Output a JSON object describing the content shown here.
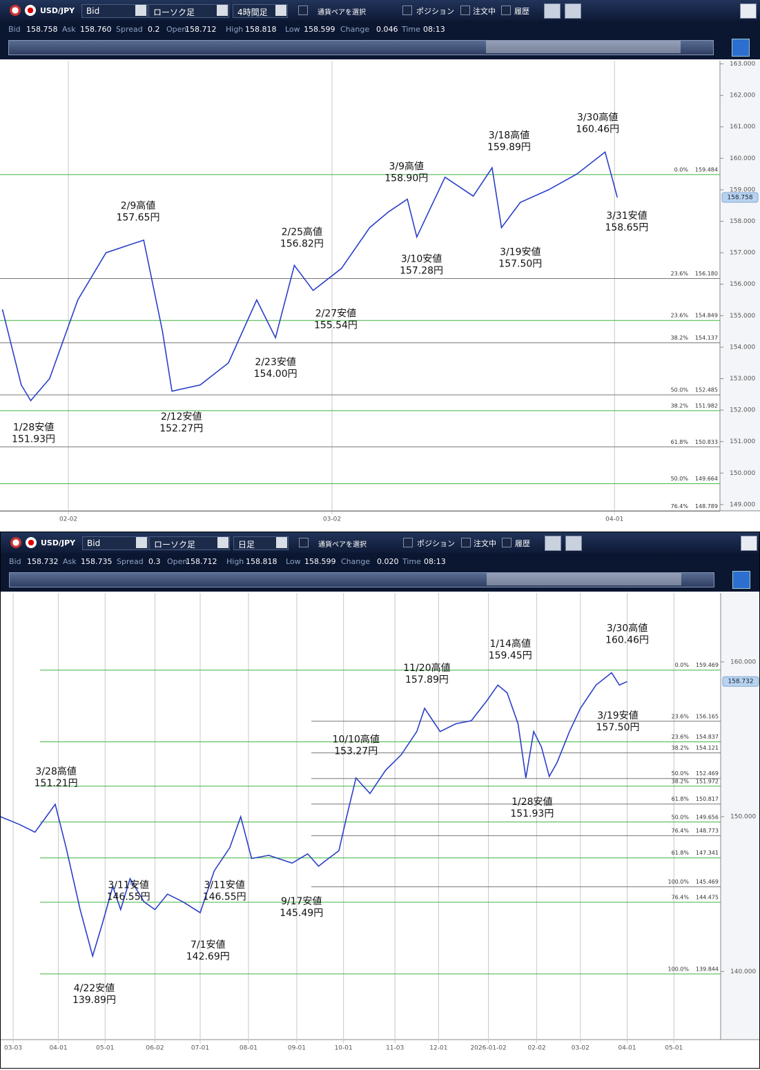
{
  "panels": [
    {
      "toolbar": {
        "pair": "USD/JPY",
        "price_type": "Bid",
        "chart_type": "ローソク足",
        "timeframe": "4時間足",
        "select_pair": "通貨ペアを選択",
        "checks": [
          "ポジション",
          "注文中",
          "履歴"
        ]
      },
      "quote": [
        {
          "label": "Bid",
          "value": "158.758"
        },
        {
          "label": "Ask",
          "value": "158.760"
        },
        {
          "label": "Spread",
          "value": "0.2"
        },
        {
          "label": "Open",
          "value": "158.712"
        },
        {
          "label": "High",
          "value": "158.818"
        },
        {
          "label": "Low",
          "value": "158.599"
        },
        {
          "label": "Change",
          "value": "0.046"
        },
        {
          "label": "Time",
          "value": "08:13"
        }
      ],
      "chart": {
        "type": "line",
        "ylim": [
          148.8,
          163.1
        ],
        "yticks": [
          {
            "value": 149,
            "label": "149.000"
          },
          {
            "value": 150,
            "label": "150.000"
          },
          {
            "value": 151,
            "label": "151.000"
          },
          {
            "value": 152,
            "label": "152.000"
          },
          {
            "value": 153,
            "label": "153.000"
          },
          {
            "value": 154,
            "label": "154.000"
          },
          {
            "value": 155,
            "label": "155.000"
          },
          {
            "value": 156,
            "label": "156.000"
          },
          {
            "value": 157,
            "label": "157.000"
          },
          {
            "value": 158,
            "label": "158.000"
          },
          {
            "value": 159,
            "label": "159.000"
          },
          {
            "value": 160,
            "label": "160.000"
          },
          {
            "value": 161,
            "label": "161.000"
          },
          {
            "value": 162,
            "label": "162.000"
          },
          {
            "value": 163,
            "label": "163.000"
          }
        ],
        "xlim": [
          24.74,
          101.2
        ],
        "xticks": [
          {
            "value": 32,
            "label": "02-02"
          },
          {
            "value": 60,
            "label": "03-02"
          },
          {
            "value": 90,
            "label": "04-01"
          }
        ],
        "price": {
          "color": "#2a3fc8",
          "x": [
            25,
            27,
            28,
            30,
            33,
            36,
            39,
            40,
            42,
            43,
            46,
            49,
            52,
            54,
            56,
            58,
            61,
            64,
            66,
            68,
            69,
            72,
            75,
            77,
            78,
            80,
            83,
            86,
            89,
            90.3
          ],
          "y": [
            155.2,
            152.8,
            152.3,
            153.0,
            155.5,
            157.0,
            157.3,
            157.4,
            154.5,
            152.6,
            152.8,
            153.5,
            155.5,
            154.3,
            156.6,
            155.8,
            156.5,
            157.8,
            158.3,
            158.7,
            157.5,
            159.4,
            158.8,
            159.7,
            157.8,
            158.6,
            159.0,
            159.5,
            160.2,
            158.76
          ]
        },
        "current": 158.758,
        "fibs": [
          {
            "label": "0.0%",
            "value": 159.484,
            "value_label": "159.484",
            "color": "#3cb43c"
          },
          {
            "label": "23.6%",
            "value": 156.18,
            "value_label": "156.180",
            "color": "#777777"
          },
          {
            "label": "23.6%",
            "value": 154.849,
            "value_label": "154.849",
            "color": "#3cb43c"
          },
          {
            "label": "38.2%",
            "value": 154.137,
            "value_label": "154.137",
            "color": "#777777"
          },
          {
            "label": "50.0%",
            "value": 152.485,
            "value_label": "152.485",
            "color": "#777777"
          },
          {
            "label": "38.2%",
            "value": 151.982,
            "value_label": "151.982",
            "color": "#3cb43c"
          },
          {
            "label": "61.8%",
            "value": 150.833,
            "value_label": "150.833",
            "color": "#777777"
          },
          {
            "label": "50.0%",
            "value": 149.664,
            "value_label": "149.664",
            "color": "#3cb43c"
          },
          {
            "label": "76.4%",
            "value": 148.789,
            "value_label": "148.789",
            "color": "#777777"
          }
        ],
        "annotations": [
          {
            "x": 28.3,
            "value": 151.93,
            "date_label": "1/28安値",
            "price_label": "151.93円"
          },
          {
            "x": 39.4,
            "value": 157.65,
            "date_label": "2/9高値",
            "price_label": "157.65円"
          },
          {
            "x": 44,
            "value": 152.27,
            "date_label": "2/12安値",
            "price_label": "152.27円"
          },
          {
            "x": 54,
            "value": 154.0,
            "date_label": "2/23安値",
            "price_label": "154.00円"
          },
          {
            "x": 56.8,
            "value": 156.82,
            "date_label": "2/25高値",
            "price_label": "156.82円"
          },
          {
            "x": 60.4,
            "value": 155.54,
            "date_label": "2/27安値",
            "price_label": "155.54円"
          },
          {
            "x": 67.9,
            "value": 158.9,
            "date_label": "3/9高値",
            "price_label": "158.90円"
          },
          {
            "x": 69.5,
            "value": 157.28,
            "date_label": "3/10安値",
            "price_label": "157.28円"
          },
          {
            "x": 78.8,
            "value": 159.89,
            "date_label": "3/18高値",
            "price_label": "159.89円"
          },
          {
            "x": 80,
            "value": 157.5,
            "date_label": "3/19安値",
            "price_label": "157.50円"
          },
          {
            "x": 88.2,
            "value": 160.46,
            "date_label": "3/30高値",
            "price_label": "160.46円"
          },
          {
            "x": 91.3,
            "value": 158.65,
            "date_label": "3/31安値",
            "price_label": "158.65円"
          }
        ]
      }
    },
    {
      "toolbar": {
        "pair": "USD/JPY",
        "price_type": "Bid",
        "chart_type": "ローソク足",
        "timeframe": "日足",
        "select_pair": "通貨ペアを選択",
        "checks": [
          "ポジション",
          "注文中",
          "履歴"
        ]
      },
      "quote": [
        {
          "label": "Bid",
          "value": "158.732"
        },
        {
          "label": "Ask",
          "value": "158.735"
        },
        {
          "label": "Spread",
          "value": "0.3"
        },
        {
          "label": "Open",
          "value": "158.712"
        },
        {
          "label": "High",
          "value": "158.818"
        },
        {
          "label": "Low",
          "value": "158.599"
        },
        {
          "label": "Change",
          "value": "0.020"
        },
        {
          "label": "Time",
          "value": "08:13"
        }
      ],
      "chart": {
        "type": "line",
        "ylim": [
          135.6,
          164.45
        ],
        "yticks": [
          {
            "value": 140,
            "label": "140.000"
          },
          {
            "value": 150,
            "label": "150.000"
          },
          {
            "value": 160,
            "label": "160.000"
          }
        ],
        "xlim": [
          53,
          515
        ],
        "xticks": [
          {
            "value": 61,
            "label": "03-03"
          },
          {
            "value": 90,
            "label": "04-01"
          },
          {
            "value": 120,
            "label": "05-01"
          },
          {
            "value": 152,
            "label": "06-02"
          },
          {
            "value": 181,
            "label": "07-01"
          },
          {
            "value": 212,
            "label": "08-01"
          },
          {
            "value": 243,
            "label": "09-01"
          },
          {
            "value": 273,
            "label": "10-01"
          },
          {
            "value": 306,
            "label": "11-03"
          },
          {
            "value": 334,
            "label": "12-01"
          },
          {
            "value": 366,
            "label": "2026-01-02"
          },
          {
            "value": 397,
            "label": "02-02"
          },
          {
            "value": 425,
            "label": "03-02"
          },
          {
            "value": 455,
            "label": "04-01"
          },
          {
            "value": 485,
            "label": "05-01"
          }
        ],
        "price": {
          "color": "#2a3fc8",
          "x": [
            53,
            65,
            75,
            88,
            95,
            104,
            112,
            118,
            125,
            130,
            136,
            145,
            152,
            160,
            170,
            181,
            190,
            200,
            207,
            214,
            225,
            240,
            250,
            257,
            262,
            270,
            275,
            281,
            290,
            300,
            310,
            320,
            325,
            335,
            345,
            355,
            365,
            372,
            378,
            385,
            390,
            395,
            400,
            405,
            410,
            418,
            425,
            435,
            445,
            450,
            455
          ],
          "y": [
            150.0,
            149.5,
            149.0,
            150.8,
            148.0,
            144.0,
            141.0,
            143.0,
            145.5,
            144.0,
            146.0,
            144.5,
            144.0,
            145.0,
            144.5,
            143.8,
            146.5,
            148.0,
            150.0,
            147.3,
            147.5,
            147.0,
            147.6,
            146.8,
            147.2,
            147.8,
            150.0,
            152.5,
            151.5,
            153.0,
            154.0,
            155.5,
            157.0,
            155.5,
            156.0,
            156.2,
            157.5,
            158.5,
            158.0,
            156.0,
            152.5,
            155.5,
            154.5,
            152.6,
            153.5,
            155.5,
            157.0,
            158.5,
            159.3,
            158.5,
            158.73
          ]
        },
        "current": 158.732,
        "fibs": [
          {
            "label": "0.0%",
            "value": 159.469,
            "value_label": "159.469",
            "color": "#3cb43c"
          },
          {
            "label": "23.6%",
            "value": 156.165,
            "value_label": "156.165",
            "color": "#777777"
          },
          {
            "label": "23.6%",
            "value": 154.837,
            "value_label": "154.837",
            "color": "#3cb43c"
          },
          {
            "label": "38.2%",
            "value": 154.121,
            "value_label": "154.121",
            "color": "#777777"
          },
          {
            "label": "50.0%",
            "value": 152.469,
            "value_label": "152.469",
            "color": "#777777"
          },
          {
            "label": "38.2%",
            "value": 151.972,
            "value_label": "151.972",
            "color": "#3cb43c"
          },
          {
            "label": "61.8%",
            "value": 150.817,
            "value_label": "150.817",
            "color": "#777777"
          },
          {
            "label": "50.0%",
            "value": 149.656,
            "value_label": "149.656",
            "color": "#3cb43c"
          },
          {
            "label": "76.4%",
            "value": 148.773,
            "value_label": "148.773",
            "color": "#777777"
          },
          {
            "label": "61.8%",
            "value": 147.341,
            "value_label": "147.341",
            "color": "#3cb43c"
          },
          {
            "label": "100.0%",
            "value": 145.469,
            "value_label": "145.469",
            "color": "#777777"
          },
          {
            "label": "76.4%",
            "value": 144.475,
            "value_label": "144.475",
            "color": "#3cb43c"
          },
          {
            "label": "100.0%",
            "value": 139.844,
            "value_label": "139.844",
            "color": "#3cb43c"
          }
        ],
        "annotations": [
          {
            "x": 88.5,
            "value": 151.21,
            "date_label": "3/28高値",
            "price_label": "151.21円"
          },
          {
            "x": 135,
            "value": 146.55,
            "date_label": "3/11安値",
            "price_label": "146.55円"
          },
          {
            "x": 113,
            "value": 139.89,
            "date_label": "4/22安値",
            "price_label": "139.89円"
          },
          {
            "x": 196.6,
            "value": 146.55,
            "date_label": "3/11安値",
            "price_label": "146.55円"
          },
          {
            "x": 186,
            "value": 142.69,
            "date_label": "7/1安値",
            "price_label": "142.69円"
          },
          {
            "x": 246,
            "value": 145.49,
            "date_label": "9/17安値",
            "price_label": "145.49円"
          },
          {
            "x": 281,
            "value": 153.27,
            "date_label": "10/10高値",
            "price_label": "153.27円"
          },
          {
            "x": 326.5,
            "value": 157.89,
            "date_label": "11/20高値",
            "price_label": "157.89円"
          },
          {
            "x": 380,
            "value": 159.45,
            "date_label": "1/14高値",
            "price_label": "159.45円"
          },
          {
            "x": 394,
            "value": 151.93,
            "date_label": "1/28安値",
            "price_label": "151.93円"
          },
          {
            "x": 449,
            "value": 157.5,
            "date_label": "3/19安値",
            "price_label": "157.50円"
          },
          {
            "x": 455,
            "value": 160.46,
            "date_label": "3/30高値",
            "price_label": "160.46円"
          }
        ]
      }
    }
  ]
}
